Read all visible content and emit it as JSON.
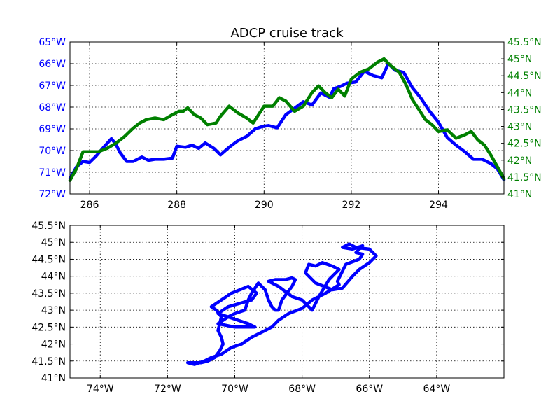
{
  "chart_data": [
    {
      "type": "line",
      "title": "ADCP cruise track",
      "xlabel": "",
      "ylabel": "",
      "grid": true,
      "xlim": [
        285.55,
        295.5
      ],
      "ylim_left": [
        -72,
        -65
      ],
      "ylim_right": [
        41,
        45.5
      ],
      "x_ticks": [
        286,
        288,
        290,
        292,
        294
      ],
      "x_tick_labels": [
        "286",
        "288",
        "290",
        "292",
        "294"
      ],
      "y_left_ticks": [
        -65,
        -66,
        -67,
        -68,
        -69,
        -70,
        -71,
        -72
      ],
      "y_left_tick_labels": [
        "65°W",
        "66°W",
        "67°W",
        "68°W",
        "69°W",
        "70°W",
        "71°W",
        "72°W"
      ],
      "y_right_ticks": [
        45.5,
        45,
        44.5,
        44,
        43.5,
        43,
        42.5,
        42,
        41.5,
        41
      ],
      "y_right_tick_labels": [
        "45.5°N",
        "45°N",
        "44.5°N",
        "44°N",
        "43.5°N",
        "43°N",
        "42.5°N",
        "42°N",
        "41.5°N",
        "41°N"
      ],
      "colors": {
        "left_axis": "#0000ff",
        "right_axis": "#008000"
      },
      "series": [
        {
          "axis": "left",
          "color": "#0000ff",
          "x": [
            285.55,
            285.7,
            285.85,
            286.0,
            286.15,
            286.3,
            286.5,
            286.6,
            286.7,
            286.85,
            287.0,
            287.2,
            287.35,
            287.5,
            287.7,
            287.9,
            288.0,
            288.2,
            288.35,
            288.5,
            288.65,
            288.85,
            289.0,
            289.2,
            289.4,
            289.6,
            289.8,
            289.95,
            290.1,
            290.3,
            290.5,
            290.7,
            290.9,
            291.1,
            291.3,
            291.5,
            291.6,
            291.75,
            291.9,
            292.1,
            292.3,
            292.5,
            292.7,
            292.85,
            293.0,
            293.2,
            293.4,
            293.6,
            293.8,
            294.0,
            294.2,
            294.4,
            294.6,
            294.8,
            295.0,
            295.2,
            295.35,
            295.5
          ],
          "y": [
            -71.3,
            -70.75,
            -70.5,
            -70.55,
            -70.25,
            -69.9,
            -69.45,
            -69.7,
            -70.1,
            -70.5,
            -70.5,
            -70.3,
            -70.45,
            -70.4,
            -70.4,
            -70.35,
            -69.8,
            -69.85,
            -69.75,
            -69.9,
            -69.65,
            -69.9,
            -70.2,
            -69.85,
            -69.55,
            -69.35,
            -69.0,
            -68.9,
            -68.85,
            -68.95,
            -68.35,
            -68.05,
            -67.75,
            -67.9,
            -67.35,
            -67.55,
            -67.15,
            -67.05,
            -66.9,
            -66.85,
            -66.35,
            -66.55,
            -66.65,
            -66.0,
            -66.3,
            -66.4,
            -67.1,
            -67.6,
            -68.2,
            -68.7,
            -69.4,
            -69.75,
            -70.05,
            -70.4,
            -70.4,
            -70.6,
            -70.85,
            -71.35
          ]
        },
        {
          "axis": "right",
          "color": "#008000",
          "x": [
            285.55,
            285.7,
            285.85,
            286.0,
            286.2,
            286.4,
            286.6,
            286.8,
            287.0,
            287.15,
            287.3,
            287.5,
            287.7,
            287.9,
            288.05,
            288.15,
            288.25,
            288.4,
            288.55,
            288.7,
            288.9,
            289.0,
            289.2,
            289.4,
            289.6,
            289.75,
            290.0,
            290.2,
            290.35,
            290.5,
            290.7,
            290.9,
            291.1,
            291.25,
            291.4,
            291.55,
            291.7,
            291.85,
            292.0,
            292.2,
            292.4,
            292.6,
            292.75,
            292.9,
            293.1,
            293.25,
            293.4,
            293.55,
            293.7,
            293.85,
            294.0,
            294.2,
            294.4,
            294.6,
            294.75,
            294.9,
            295.05,
            295.2,
            295.35,
            295.5
          ],
          "y": [
            41.4,
            41.75,
            42.25,
            42.25,
            42.25,
            42.35,
            42.5,
            42.7,
            42.95,
            43.1,
            43.2,
            43.25,
            43.2,
            43.35,
            43.45,
            43.45,
            43.55,
            43.35,
            43.25,
            43.05,
            43.1,
            43.3,
            43.6,
            43.4,
            43.25,
            43.1,
            43.6,
            43.6,
            43.85,
            43.75,
            43.45,
            43.6,
            44.0,
            44.2,
            44.0,
            43.85,
            44.1,
            43.9,
            44.4,
            44.6,
            44.7,
            44.9,
            45.0,
            44.8,
            44.6,
            44.25,
            43.8,
            43.5,
            43.2,
            43.05,
            42.85,
            42.9,
            42.65,
            42.75,
            42.85,
            42.6,
            42.45,
            42.15,
            41.8,
            41.45
          ]
        }
      ]
    },
    {
      "type": "line",
      "title": "",
      "xlabel": "",
      "ylabel": "",
      "grid": true,
      "xlim": [
        -74.9,
        -62.0
      ],
      "ylim": [
        41,
        45.5
      ],
      "x_ticks": [
        -74,
        -72,
        -70,
        -68,
        -66,
        -64
      ],
      "x_tick_labels": [
        "74°W",
        "72°W",
        "70°W",
        "68°W",
        "66°W",
        "64°W"
      ],
      "y_ticks": [
        45.5,
        45,
        44.5,
        44,
        43.5,
        43,
        42.5,
        42,
        41.5,
        41
      ],
      "y_tick_labels": [
        "45.5°N",
        "45°N",
        "44.5°N",
        "44°N",
        "43.5°N",
        "43°N",
        "42.5°N",
        "42°N",
        "41.5°N",
        "41°N"
      ],
      "series": [
        {
          "color": "#0000ff",
          "x": [
            -71.4,
            -71.2,
            -71.0,
            -70.8,
            -70.6,
            -70.45,
            -70.35,
            -70.4,
            -70.5,
            -70.45,
            -70.4,
            -70.55,
            -70.7,
            -70.4,
            -70.1,
            -69.6,
            -69.35,
            -69.5,
            -69.85,
            -70.2,
            -70.35,
            -70.5,
            -70.2,
            -69.9,
            -69.6,
            -69.4,
            -69.8,
            -70.0,
            -70.5,
            -70.2,
            -70.0,
            -69.7,
            -69.6,
            -69.5,
            -69.3,
            -69.1,
            -69.0,
            -68.9,
            -68.8,
            -68.7,
            -68.6,
            -68.3,
            -68.2,
            -68.3,
            -68.5,
            -68.8,
            -69.0,
            -68.7,
            -68.3,
            -68.0,
            -67.9,
            -67.8,
            -67.7,
            -67.6,
            -67.5,
            -67.2,
            -67.0,
            -66.9,
            -67.1,
            -67.4,
            -67.6,
            -67.8,
            -67.9,
            -67.6,
            -67.1,
            -66.8,
            -66.5,
            -66.3,
            -66.0,
            -65.8,
            -66.0,
            -66.4,
            -66.6,
            -66.8,
            -66.5,
            -66.2,
            -66.4,
            -66.2,
            -66.3,
            -66.7,
            -66.95,
            -66.9,
            -67.3,
            -67.7,
            -68.0,
            -68.4,
            -68.7,
            -68.9,
            -69.1,
            -69.5,
            -69.8,
            -70.1,
            -70.4,
            -70.7,
            -70.9,
            -71.2,
            -71.4
          ],
          "y": [
            41.45,
            41.45,
            41.45,
            41.5,
            41.6,
            41.8,
            42.0,
            42.2,
            42.4,
            42.6,
            42.8,
            43.0,
            43.1,
            43.3,
            43.5,
            43.7,
            43.5,
            43.3,
            43.2,
            43.1,
            43.0,
            42.9,
            42.8,
            42.7,
            42.6,
            42.5,
            42.5,
            42.5,
            42.6,
            42.8,
            42.9,
            43.0,
            43.3,
            43.5,
            43.8,
            43.6,
            43.3,
            43.1,
            43.0,
            43.0,
            43.3,
            43.7,
            43.9,
            43.95,
            43.9,
            43.9,
            43.85,
            43.7,
            43.4,
            43.3,
            43.2,
            43.1,
            43.0,
            43.2,
            43.4,
            43.9,
            44.1,
            44.2,
            44.3,
            44.4,
            44.3,
            44.35,
            44.1,
            43.8,
            43.6,
            43.65,
            44.0,
            44.2,
            44.4,
            44.6,
            44.8,
            44.85,
            44.95,
            44.85,
            44.8,
            44.9,
            44.7,
            44.65,
            44.5,
            44.35,
            43.85,
            43.75,
            43.5,
            43.3,
            43.05,
            42.9,
            42.7,
            42.5,
            42.4,
            42.2,
            42.0,
            41.9,
            41.7,
            41.6,
            41.5,
            41.4,
            41.45
          ]
        }
      ]
    }
  ]
}
